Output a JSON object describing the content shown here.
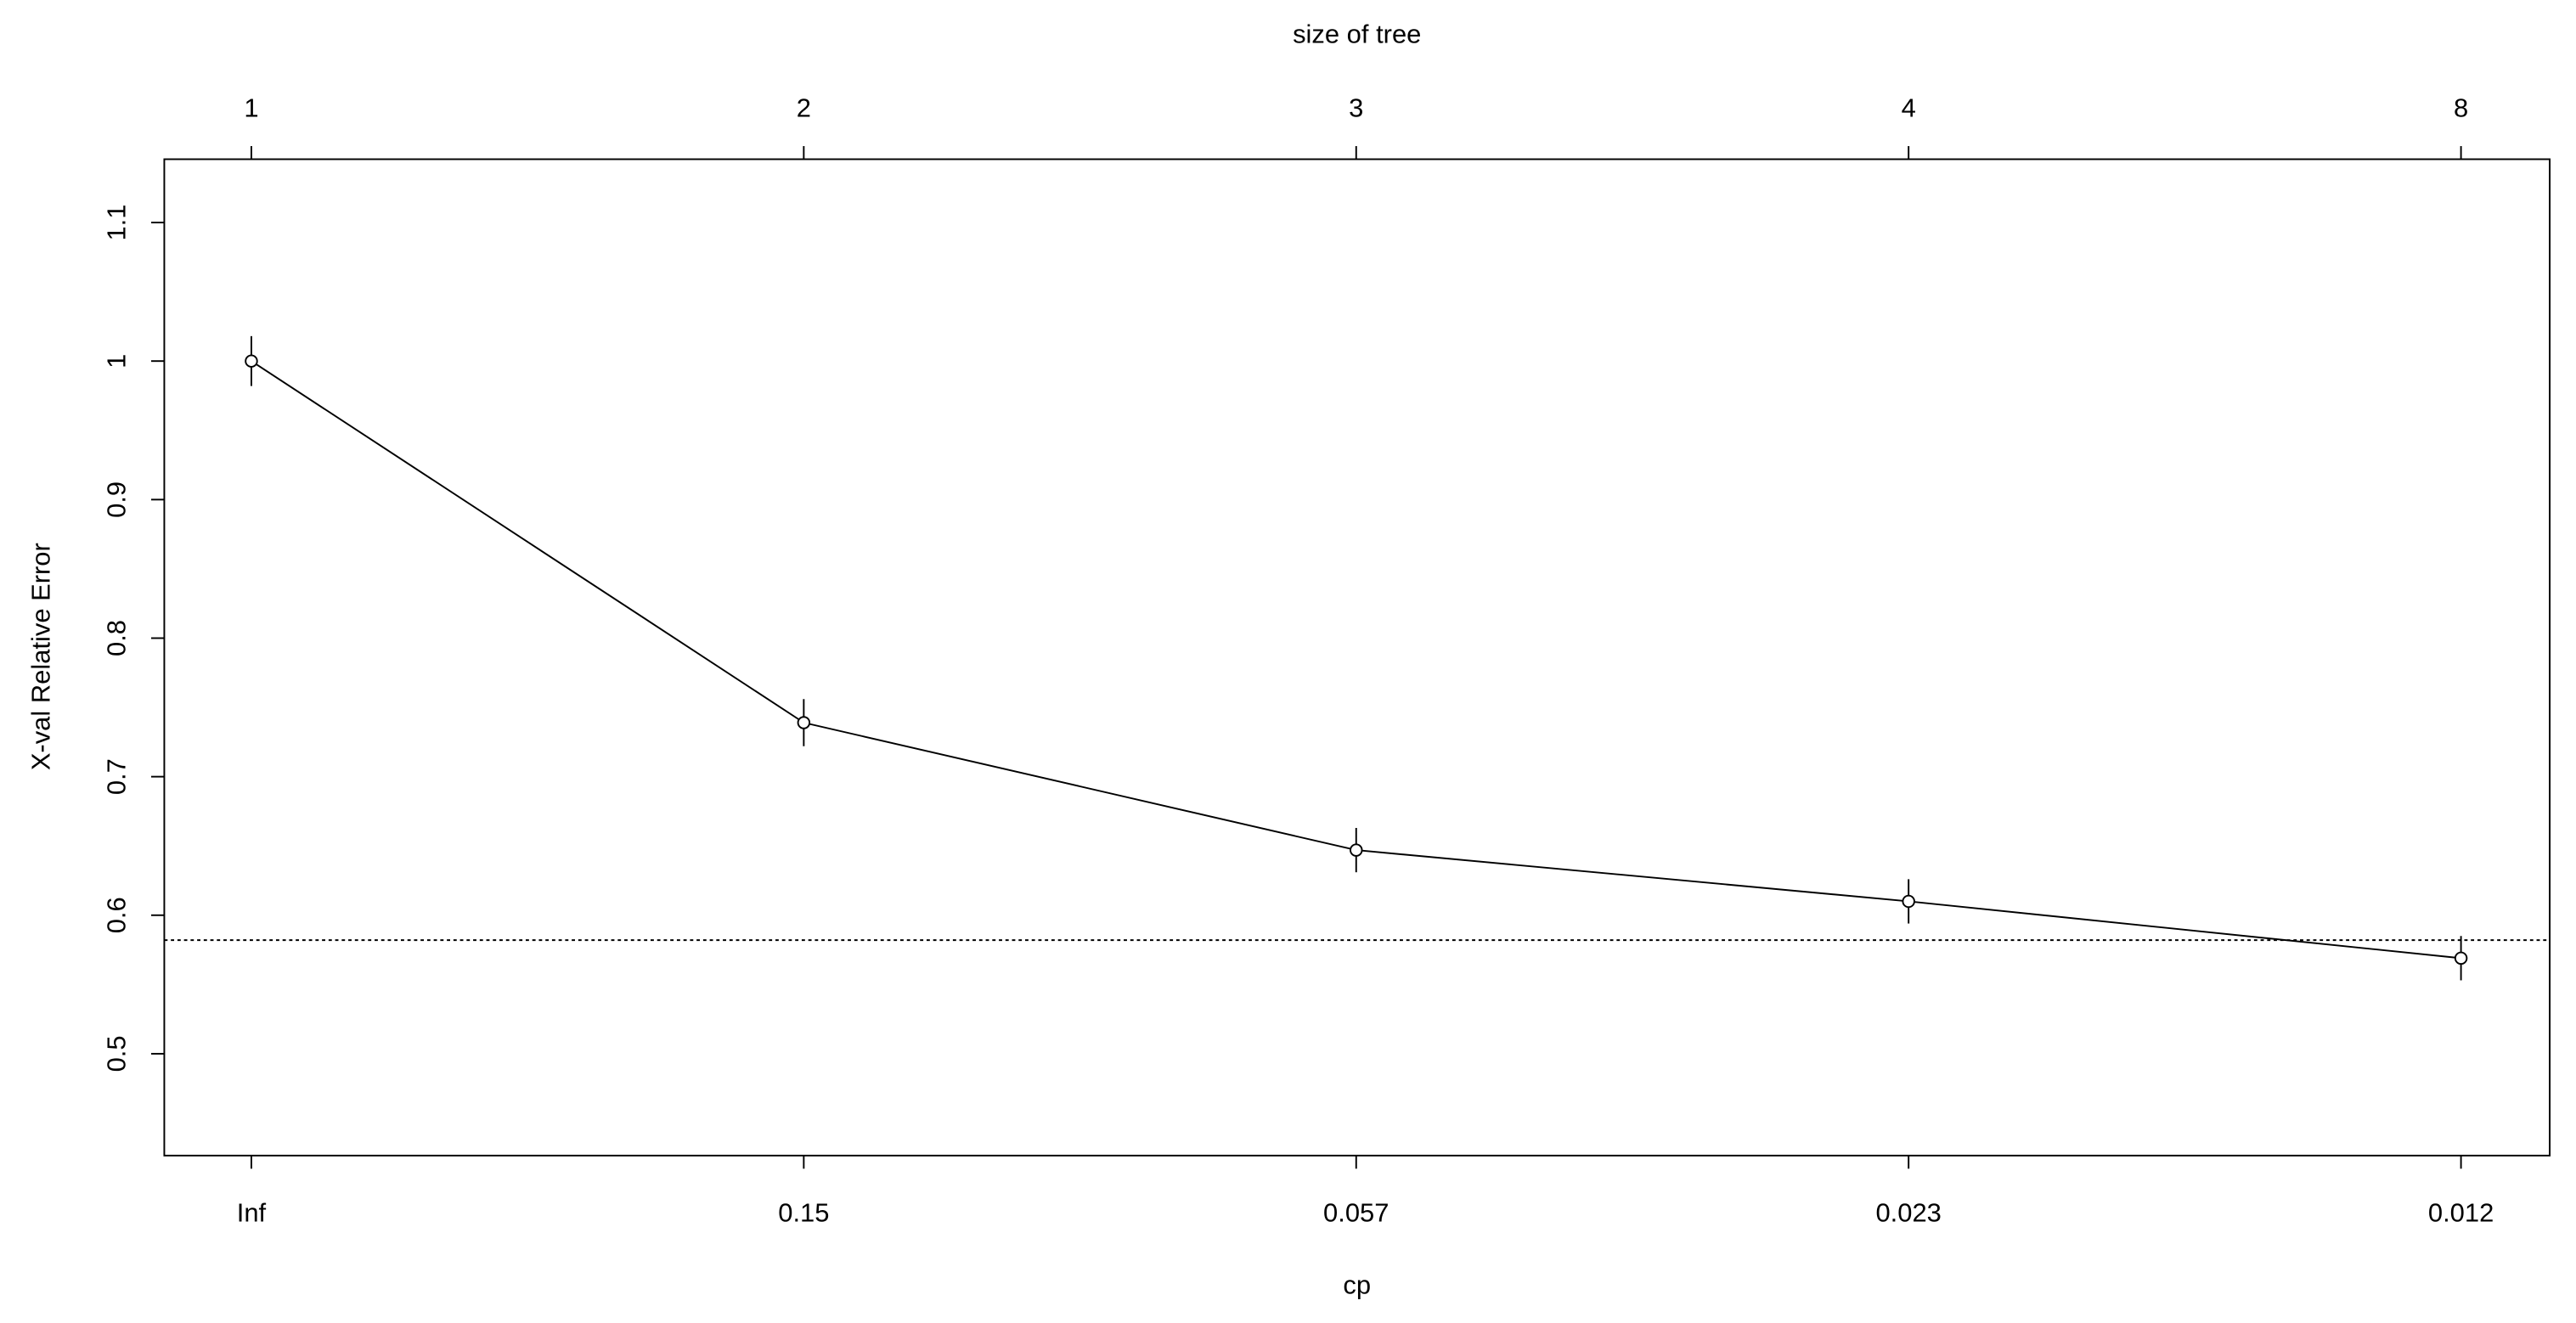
{
  "chart_data": {
    "type": "line",
    "title": "size of tree",
    "x_label": "cp",
    "y_label": "X-val Relative Error",
    "categories": [
      "Inf",
      "0.15",
      "0.057",
      "0.023",
      "0.012"
    ],
    "top_categories": [
      "1",
      "2",
      "3",
      "4",
      "8"
    ],
    "series": [
      {
        "name": "X-val Relative Error",
        "color": "#000000",
        "values": [
          1.0,
          0.739,
          0.647,
          0.61,
          0.569
        ],
        "errors": [
          0.018,
          0.017,
          0.016,
          0.016,
          0.016
        ]
      }
    ],
    "reference_line": 0.582,
    "ylim": [
      0.4265,
      1.1457
    ],
    "yticks": [
      0.5,
      0.6,
      0.7,
      0.8,
      0.9,
      1.0,
      1.1
    ]
  }
}
